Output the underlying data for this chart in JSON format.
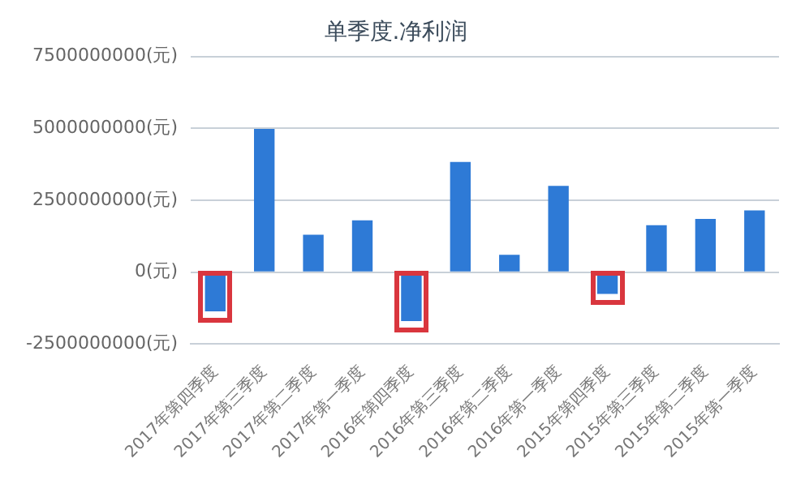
{
  "chart_data": {
    "type": "bar",
    "title": "单季度.净利润",
    "categories": [
      "2017年第四季度",
      "2017年第三季度",
      "2017年第二季度",
      "2017年第一季度",
      "2016年第四季度",
      "2016年第三季度",
      "2016年第二季度",
      "2016年第一季度",
      "2015年第四季度",
      "2015年第三季度",
      "2015年第二季度",
      "2015年第一季度"
    ],
    "values": [
      -1360000000,
      4980000000,
      1300000000,
      1800000000,
      -1700000000,
      3830000000,
      600000000,
      3000000000,
      -760000000,
      1630000000,
      1850000000,
      2150000000
    ],
    "color": "#2e7ad6",
    "ylim": [
      -2500000000,
      7500000000
    ],
    "yticks": [
      {
        "value": -2500000000,
        "label": "-2500000000(元)"
      },
      {
        "value": 0,
        "label": "0(元)"
      },
      {
        "value": 2500000000,
        "label": "2500000000(元)"
      },
      {
        "value": 5000000000,
        "label": "5000000000(元)"
      },
      {
        "value": 7500000000,
        "label": "7500000000(元)"
      }
    ],
    "grid": "y",
    "legend": false
  }
}
